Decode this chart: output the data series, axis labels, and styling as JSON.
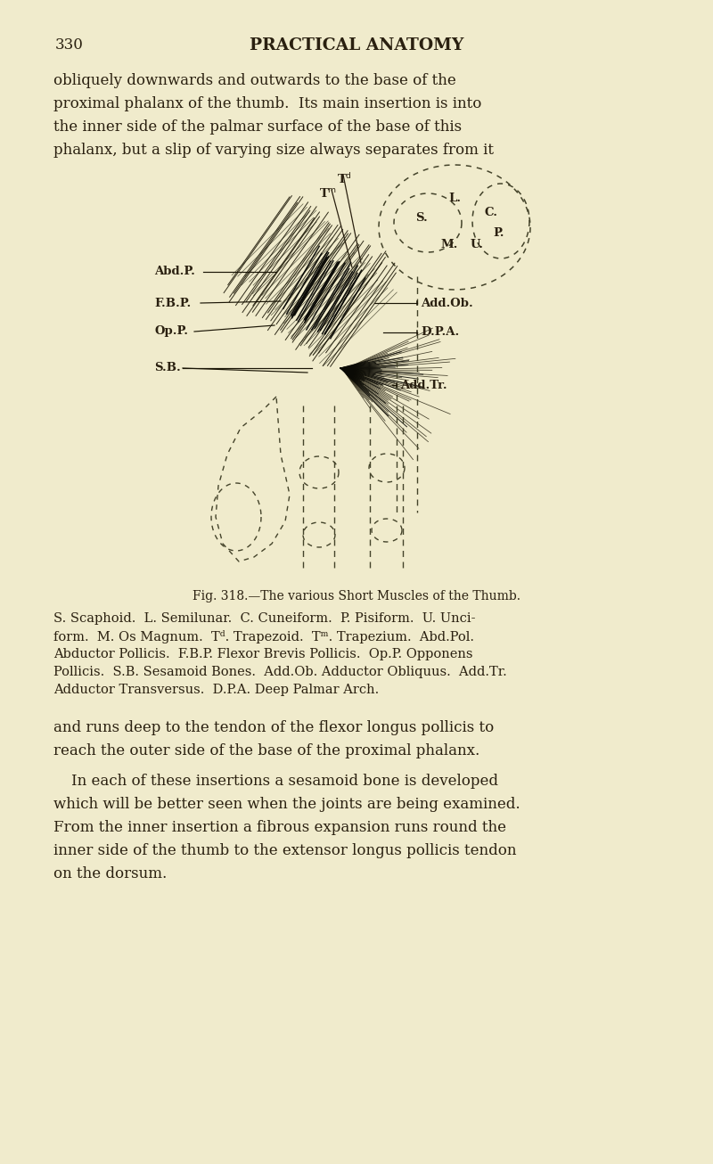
{
  "background_color": "#f0ebcc",
  "page_number": "330",
  "page_header": "PRACTICAL ANATOMY",
  "top_para_lines": [
    "obliquely downwards and outwards to the base of the",
    "proximal phalanx of the thumb.  Its main insertion is into",
    "the inner side of the palmar surface of the base of this",
    "phalanx, but a slip of varying size always separates from it"
  ],
  "figure_caption": "Fig. 318.—The various Short Muscles of the Thumb.",
  "legend_lines": [
    "S. Scaphoid.  L. Semilunar.  C. Cuneiform.  P. Pisiform.  U. Unci-",
    "form.  M. Os Magnum.  Tᵈ. Trapezoid.  Tᵐ. Trapezium.  Abd.Pol.",
    "Abductor Pollicis.  F.B.P. Flexor Brevis Pollicis.  Op.P. Opponens",
    "Pollicis.  S.B. Sesamoid Bones.  Add.Ob. Adductor Obliquus.  Add.Tr.",
    "Adductor Transversus.  D.P.A. Deep Palmar Arch."
  ],
  "bot_para1_lines": [
    "and runs deep to the tendon of the flexor longus pollicis to",
    "reach the outer side of the base of the proximal phalanx."
  ],
  "bot_para2_lines": [
    "In each of these insertions a sesamoid bone is developed",
    "which will be better seen when the joints are being examined.",
    "From the inner insertion a fibrous expansion runs round the",
    "inner side of the thumb to the extensor longus pollicis tendon",
    "on the dorsum."
  ],
  "text_color": "#2a2010",
  "ink_color": "#1a1505"
}
